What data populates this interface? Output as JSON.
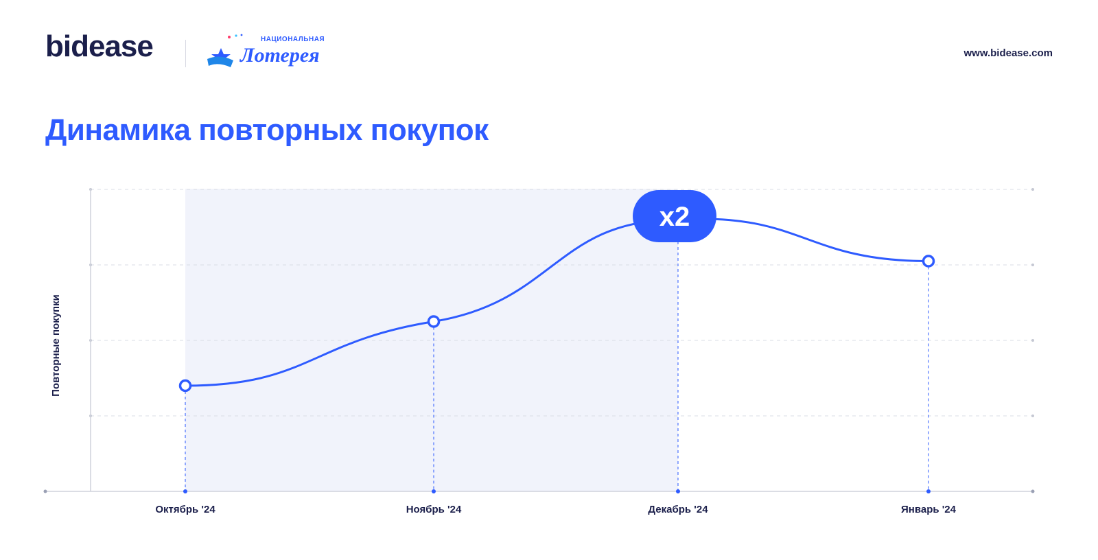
{
  "header": {
    "brand": "bidease",
    "partner_logo": {
      "small_text": "НАЦИОНАЛЬНАЯ",
      "script_text": "Лотерея"
    },
    "site_url": "www.bidease.com"
  },
  "title": "Динамика повторных покупок",
  "colors": {
    "accent": "#2e5bff",
    "text": "#1b1f4b",
    "highlight_band": "#f1f3fb",
    "grid": "#d9dce6"
  },
  "chart_data": {
    "type": "line",
    "title": "Динамика повторных покупок",
    "xlabel": "",
    "ylabel": "Повторные покупки",
    "categories": [
      "Октябрь '24",
      "Ноябрь '24",
      "Декабрь '24",
      "Январь '24"
    ],
    "series": [
      {
        "values": [
          1.4,
          2.25,
          3.6,
          3.05
        ]
      }
    ],
    "ylim": [
      0,
      4
    ],
    "grid": true,
    "smooth": true,
    "highlight_range": [
      "Октябрь '24",
      "Декабрь '24"
    ],
    "annotations": [
      {
        "category": "Декабрь '24",
        "text": "x2"
      }
    ],
    "marker_on_points": [
      "Октябрь '24",
      "Ноябрь '24",
      "Январь '24"
    ]
  }
}
